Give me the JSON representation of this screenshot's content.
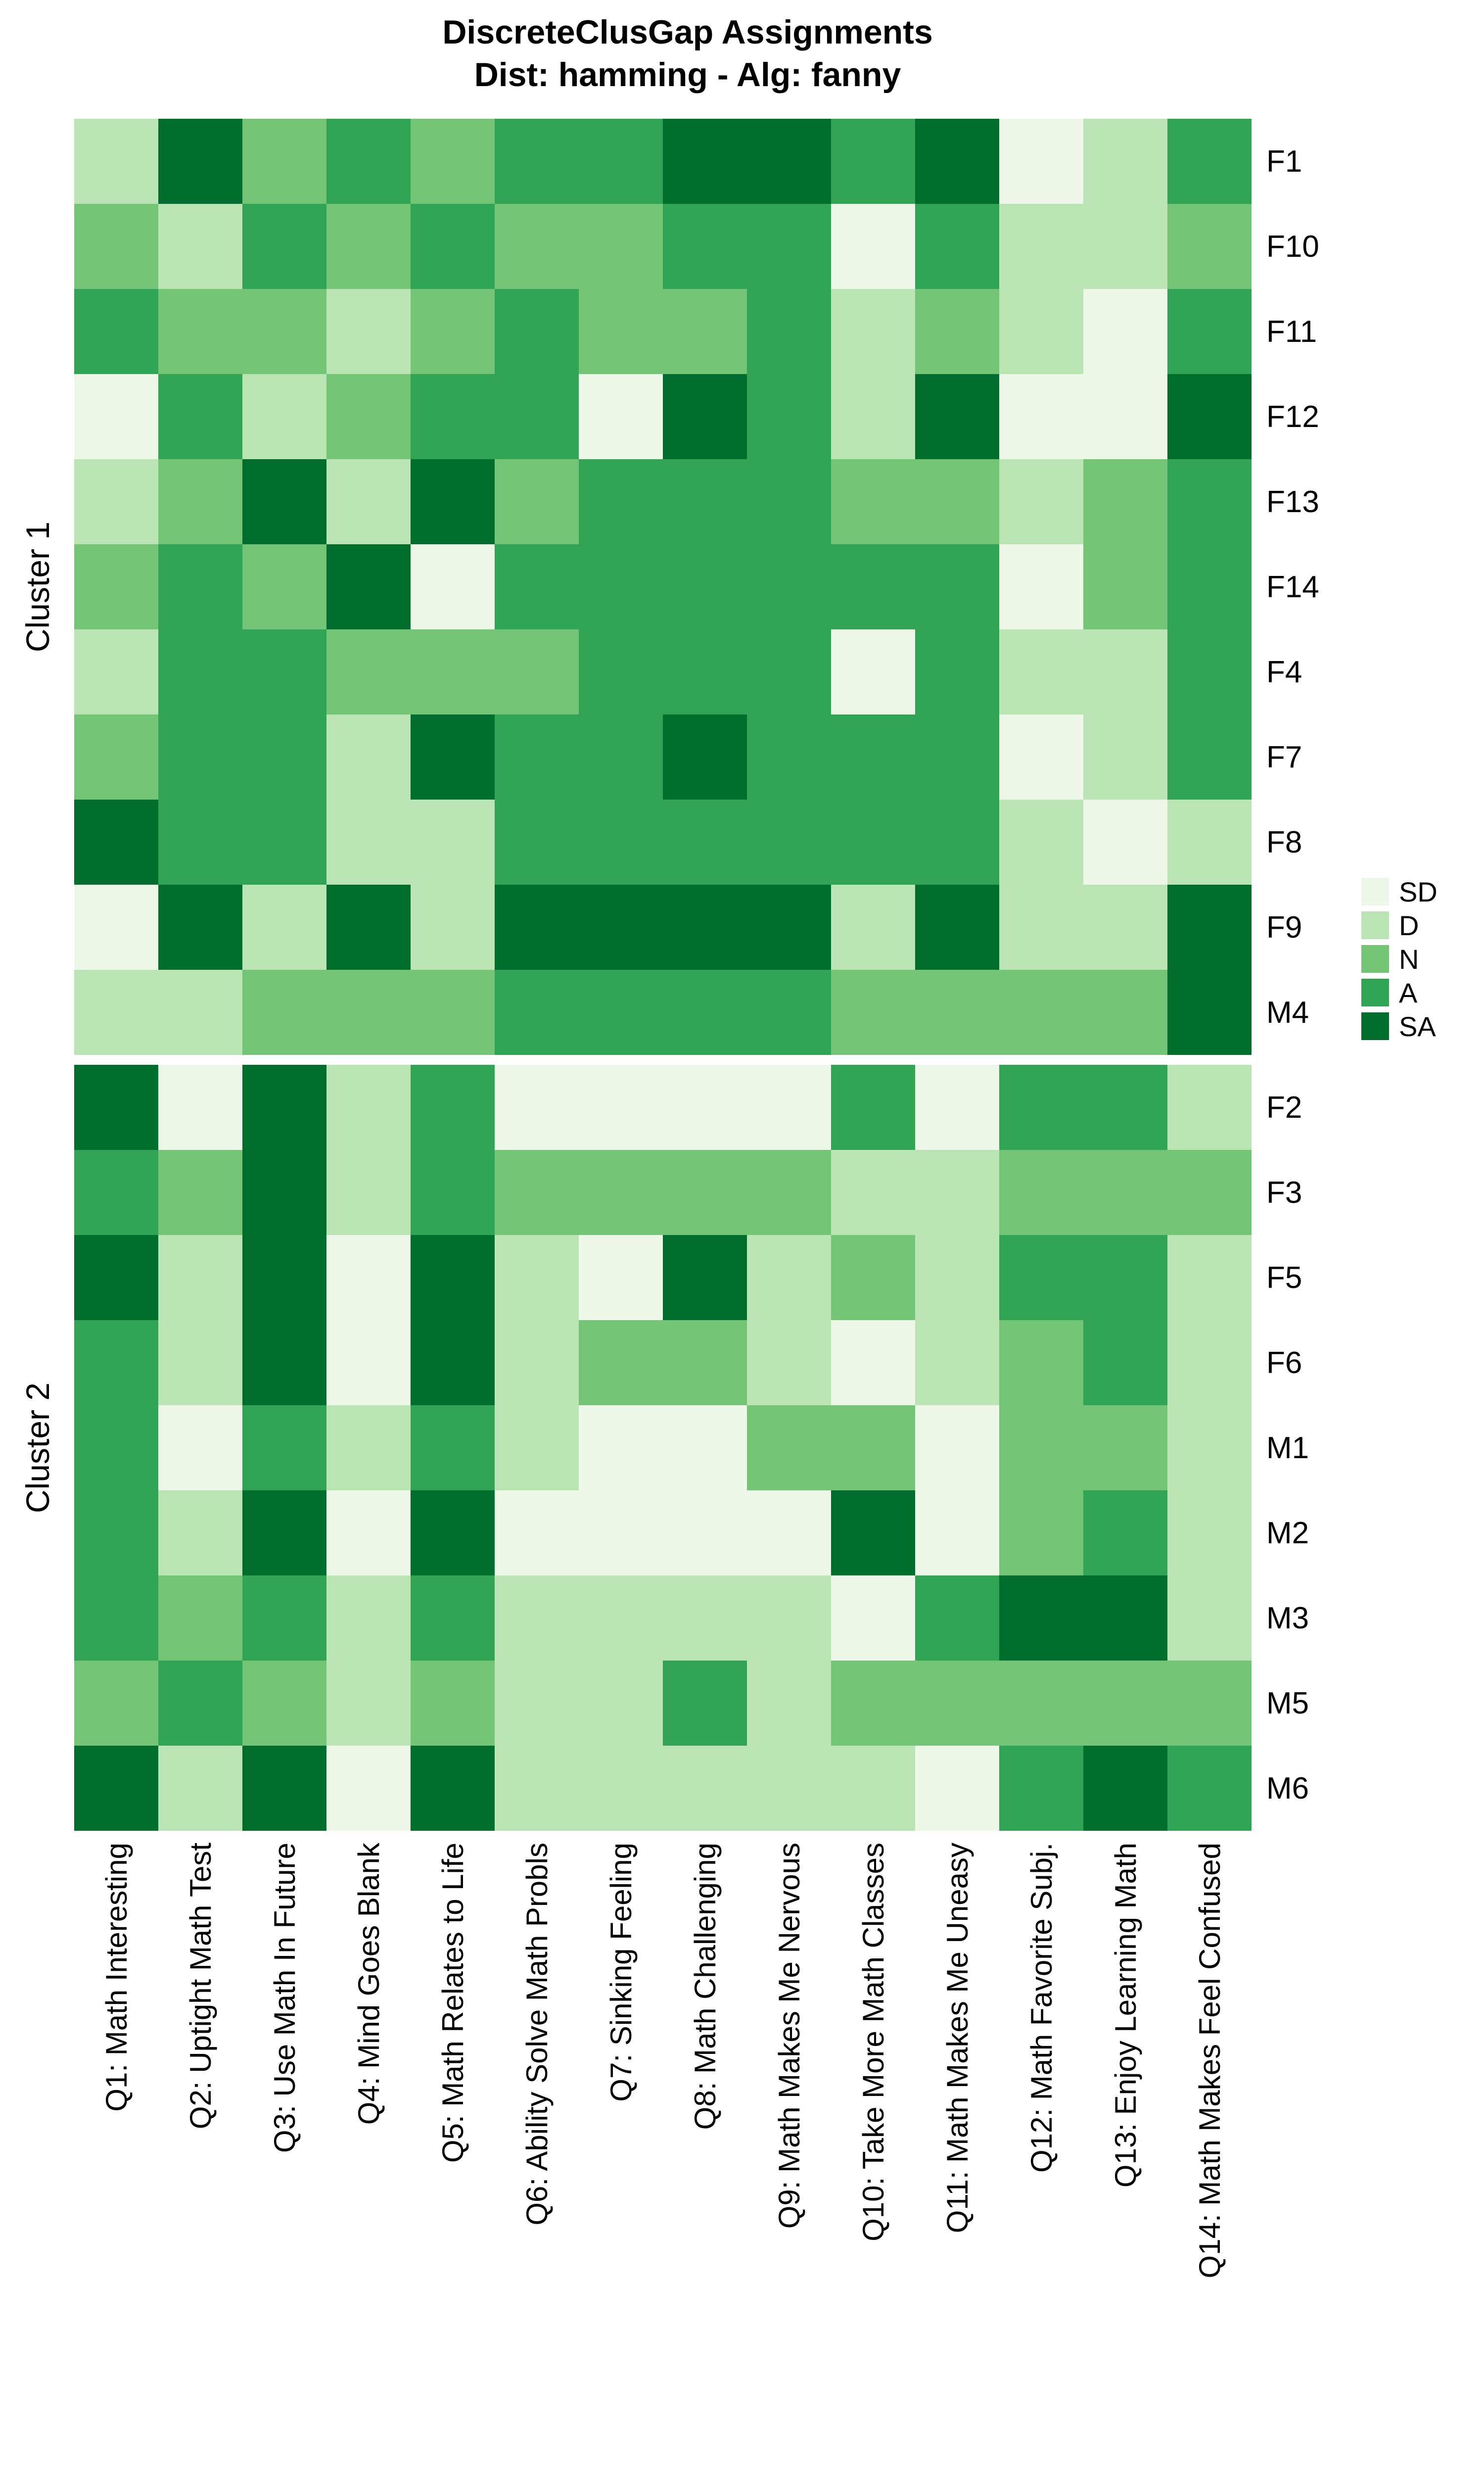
{
  "chart_data": {
    "type": "heatmap",
    "title": "DiscreteClusGap Assignments",
    "subtitle": "Dist: hamming - Alg: fanny",
    "value_scale": [
      "SD",
      "D",
      "N",
      "A",
      "SA"
    ],
    "colors": {
      "SD": "#EDF8E9",
      "D": "#BAE4B3",
      "N": "#74C476",
      "A": "#31A354",
      "SA": "#006D2C"
    },
    "legend": {
      "position": "right",
      "entries": [
        "SD",
        "D",
        "N",
        "A",
        "SA"
      ]
    },
    "columns": [
      "Q1: Math Interesting",
      "Q2: Uptight Math Test",
      "Q3: Use Math In Future",
      "Q4: Mind Goes Blank",
      "Q5: Math Relates to Life",
      "Q6: Ability Solve Math Probls",
      "Q7: Sinking Feeling",
      "Q8: Math Challenging",
      "Q9: Math Makes Me Nervous",
      "Q10: Take More Math Classes",
      "Q11: Math Makes Me Uneasy",
      "Q12: Math Favorite Subj.",
      "Q13: Enjoy Learning Math",
      "Q14: Math Makes Feel Confused"
    ],
    "clusters": [
      {
        "label": "Cluster 1",
        "rows": [
          {
            "id": "F1",
            "values": [
              "D",
              "SA",
              "N",
              "A",
              "N",
              "A",
              "A",
              "SA",
              "SA",
              "A",
              "SA",
              "SD",
              "D",
              "A"
            ]
          },
          {
            "id": "F10",
            "values": [
              "N",
              "D",
              "A",
              "N",
              "A",
              "N",
              "N",
              "A",
              "A",
              "SD",
              "A",
              "D",
              "D",
              "N"
            ]
          },
          {
            "id": "F11",
            "values": [
              "A",
              "N",
              "N",
              "D",
              "N",
              "A",
              "N",
              "N",
              "A",
              "D",
              "N",
              "D",
              "SD",
              "A"
            ]
          },
          {
            "id": "F12",
            "values": [
              "SD",
              "A",
              "D",
              "N",
              "A",
              "A",
              "SD",
              "SA",
              "A",
              "D",
              "SA",
              "SD",
              "SD",
              "SA"
            ]
          },
          {
            "id": "F13",
            "values": [
              "D",
              "N",
              "SA",
              "D",
              "SA",
              "N",
              "A",
              "A",
              "A",
              "N",
              "N",
              "D",
              "N",
              "A"
            ]
          },
          {
            "id": "F14",
            "values": [
              "N",
              "A",
              "N",
              "SA",
              "SD",
              "A",
              "A",
              "A",
              "A",
              "A",
              "A",
              "SD",
              "N",
              "A"
            ]
          },
          {
            "id": "F4",
            "values": [
              "D",
              "A",
              "A",
              "N",
              "N",
              "N",
              "A",
              "A",
              "A",
              "SD",
              "A",
              "D",
              "D",
              "A"
            ]
          },
          {
            "id": "F7",
            "values": [
              "N",
              "A",
              "A",
              "D",
              "SA",
              "A",
              "A",
              "SA",
              "A",
              "A",
              "A",
              "SD",
              "D",
              "A"
            ]
          },
          {
            "id": "F8",
            "values": [
              "SA",
              "A",
              "A",
              "D",
              "D",
              "A",
              "A",
              "A",
              "A",
              "A",
              "A",
              "D",
              "SD",
              "D"
            ]
          },
          {
            "id": "F9",
            "values": [
              "SD",
              "SA",
              "D",
              "SA",
              "D",
              "SA",
              "SA",
              "SA",
              "SA",
              "D",
              "SA",
              "D",
              "D",
              "SA"
            ]
          },
          {
            "id": "M4",
            "values": [
              "D",
              "D",
              "N",
              "N",
              "N",
              "A",
              "A",
              "A",
              "A",
              "N",
              "N",
              "N",
              "N",
              "SA"
            ]
          }
        ]
      },
      {
        "label": "Cluster 2",
        "rows": [
          {
            "id": "F2",
            "values": [
              "SA",
              "SD",
              "SA",
              "D",
              "A",
              "SD",
              "SD",
              "SD",
              "SD",
              "A",
              "SD",
              "A",
              "A",
              "D"
            ]
          },
          {
            "id": "F3",
            "values": [
              "A",
              "N",
              "SA",
              "D",
              "A",
              "N",
              "N",
              "N",
              "N",
              "D",
              "D",
              "N",
              "N",
              "N"
            ]
          },
          {
            "id": "F5",
            "values": [
              "SA",
              "D",
              "SA",
              "SD",
              "SA",
              "D",
              "SD",
              "SA",
              "D",
              "N",
              "D",
              "A",
              "A",
              "D"
            ]
          },
          {
            "id": "F6",
            "values": [
              "A",
              "D",
              "SA",
              "SD",
              "SA",
              "D",
              "N",
              "N",
              "D",
              "SD",
              "D",
              "N",
              "A",
              "D"
            ]
          },
          {
            "id": "M1",
            "values": [
              "A",
              "SD",
              "A",
              "D",
              "A",
              "D",
              "SD",
              "SD",
              "N",
              "N",
              "SD",
              "N",
              "N",
              "D"
            ]
          },
          {
            "id": "M2",
            "values": [
              "A",
              "D",
              "SA",
              "SD",
              "SA",
              "SD",
              "SD",
              "SD",
              "SD",
              "SA",
              "SD",
              "N",
              "A",
              "D"
            ]
          },
          {
            "id": "M3",
            "values": [
              "A",
              "N",
              "A",
              "D",
              "A",
              "D",
              "D",
              "D",
              "D",
              "SD",
              "A",
              "SA",
              "SA",
              "D"
            ]
          },
          {
            "id": "M5",
            "values": [
              "N",
              "A",
              "N",
              "D",
              "N",
              "D",
              "D",
              "A",
              "D",
              "N",
              "N",
              "N",
              "N",
              "N"
            ]
          },
          {
            "id": "M6",
            "values": [
              "SA",
              "D",
              "SA",
              "SD",
              "SA",
              "D",
              "D",
              "D",
              "D",
              "D",
              "SD",
              "A",
              "SA",
              "A"
            ]
          }
        ]
      }
    ]
  }
}
